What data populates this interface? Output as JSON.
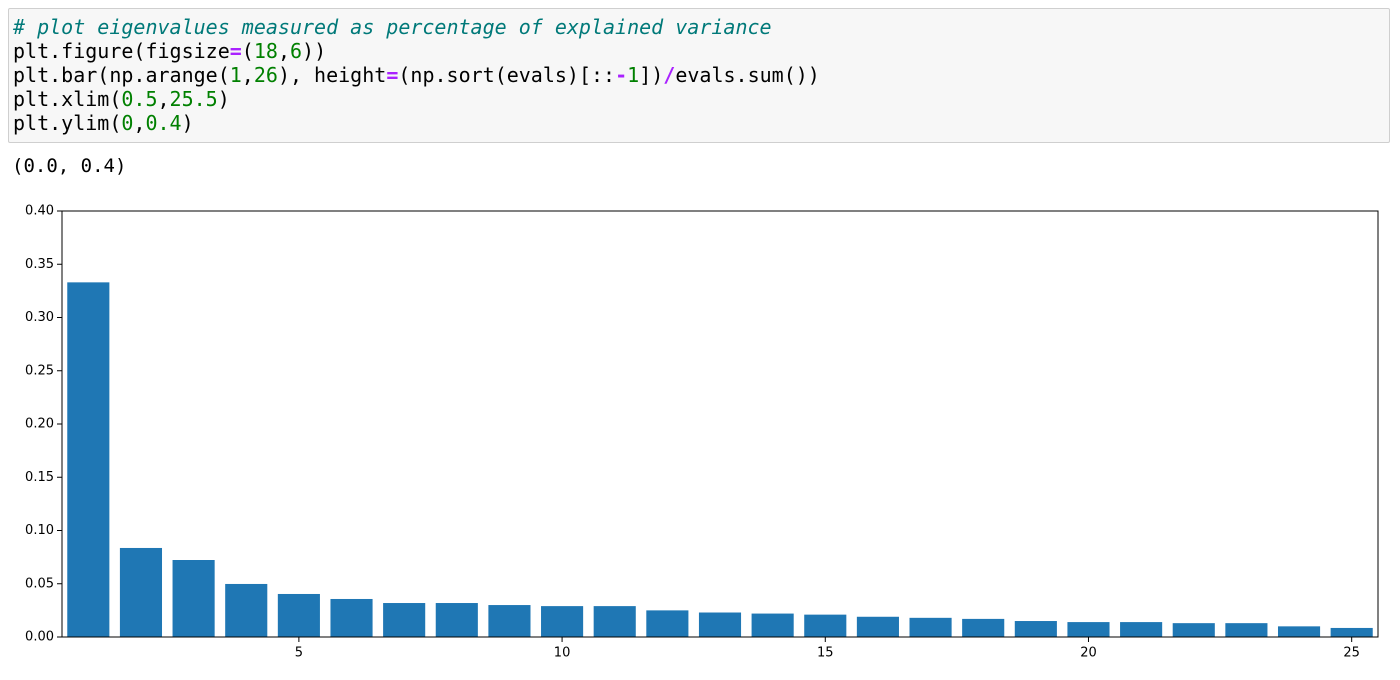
{
  "cell": {
    "code": [
      [
        {
          "text": "# plot eigenvalues measured as percentage of explained variance",
          "color": "#007979",
          "italic": true
        }
      ],
      [
        {
          "text": "plt.figure(figsize",
          "color": "#000000"
        },
        {
          "text": "=",
          "color": "#aa22ff",
          "bold": true
        },
        {
          "text": "(",
          "color": "#000000"
        },
        {
          "text": "18",
          "color": "#008000"
        },
        {
          "text": ",",
          "color": "#000000"
        },
        {
          "text": "6",
          "color": "#008000"
        },
        {
          "text": "))",
          "color": "#000000"
        }
      ],
      [
        {
          "text": "plt.bar(np.arange(",
          "color": "#000000"
        },
        {
          "text": "1",
          "color": "#008000"
        },
        {
          "text": ",",
          "color": "#000000"
        },
        {
          "text": "26",
          "color": "#008000"
        },
        {
          "text": "), height",
          "color": "#000000"
        },
        {
          "text": "=",
          "color": "#aa22ff",
          "bold": true
        },
        {
          "text": "(np.sort(evals)[::",
          "color": "#000000"
        },
        {
          "text": "-",
          "color": "#aa22ff",
          "bold": true
        },
        {
          "text": "1",
          "color": "#008000"
        },
        {
          "text": "])",
          "color": "#000000"
        },
        {
          "text": "/",
          "color": "#aa22ff",
          "bold": true
        },
        {
          "text": "evals.sum())",
          "color": "#000000"
        }
      ],
      [
        {
          "text": "plt.xlim(",
          "color": "#000000"
        },
        {
          "text": "0.5",
          "color": "#008000"
        },
        {
          "text": ",",
          "color": "#000000"
        },
        {
          "text": "25.5",
          "color": "#008000"
        },
        {
          "text": ")",
          "color": "#000000"
        }
      ],
      [
        {
          "text": "plt.ylim(",
          "color": "#000000"
        },
        {
          "text": "0",
          "color": "#008000"
        },
        {
          "text": ",",
          "color": "#000000"
        },
        {
          "text": "0.4",
          "color": "#008000"
        },
        {
          "text": ")",
          "color": "#000000"
        }
      ]
    ],
    "output": "(0.0, 0.4)"
  },
  "chart_data": {
    "type": "bar",
    "color": "#1f77b4",
    "x": [
      1,
      2,
      3,
      4,
      5,
      6,
      7,
      8,
      9,
      10,
      11,
      12,
      13,
      14,
      15,
      16,
      17,
      18,
      19,
      20,
      21,
      22,
      23,
      24,
      25
    ],
    "values": [
      0.333,
      0.0836,
      0.0723,
      0.0498,
      0.0404,
      0.0357,
      0.0319,
      0.0319,
      0.03,
      0.029,
      0.029,
      0.025,
      0.023,
      0.022,
      0.021,
      0.019,
      0.018,
      0.017,
      0.015,
      0.014,
      0.014,
      0.013,
      0.013,
      0.01,
      0.0085
    ],
    "xlim": [
      0.5,
      25.5
    ],
    "xticks": [
      5,
      10,
      15,
      20,
      25
    ],
    "ylim": [
      0,
      0.4
    ],
    "yticks": [
      {
        "value": 0,
        "label": "0.00"
      },
      {
        "value": 0.05,
        "label": "0.05"
      },
      {
        "value": 0.1,
        "label": "0.10"
      },
      {
        "value": 0.15,
        "label": "0.15"
      },
      {
        "value": 0.2,
        "label": "0.20"
      },
      {
        "value": 0.25,
        "label": "0.25"
      },
      {
        "value": 0.3,
        "label": "0.30"
      },
      {
        "value": 0.35,
        "label": "0.35"
      },
      {
        "value": 0.4,
        "label": "0.40"
      }
    ]
  }
}
